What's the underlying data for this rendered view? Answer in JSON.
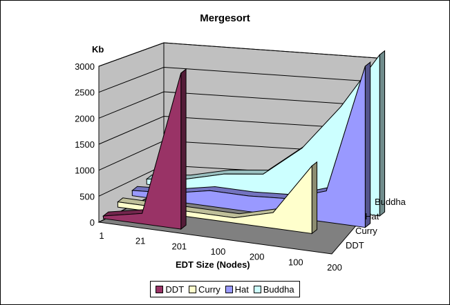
{
  "chart_data": {
    "type": "area",
    "title": "Mergesort",
    "ylabel": "Kb",
    "xlabel": "EDT Size (Nodes)",
    "categories": [
      "1",
      "21",
      "201",
      "100",
      "200",
      "100",
      "200"
    ],
    "ylim": [
      0,
      3000
    ],
    "yticks": [
      0,
      500,
      1000,
      1500,
      2000,
      2500,
      3000
    ],
    "series": [
      {
        "name": "DDT",
        "color": "#993366",
        "values": [
          50,
          200,
          3000,
          null,
          null,
          null,
          null
        ]
      },
      {
        "name": "Curry",
        "color": "#ffffcc",
        "values": [
          100,
          100,
          100,
          100,
          300,
          1300,
          null
        ]
      },
      {
        "name": "Hat",
        "color": "#9999ff",
        "values": [
          100,
          150,
          300,
          300,
          350,
          600,
          3100
        ]
      },
      {
        "name": "Buddha",
        "color": "#ccffff",
        "values": [
          100,
          200,
          400,
          500,
          1100,
          2000,
          3100
        ]
      }
    ],
    "depth_labels": [
      "DDT",
      "Curry",
      "Hat",
      "Buddha"
    ],
    "legend": "bottom"
  }
}
